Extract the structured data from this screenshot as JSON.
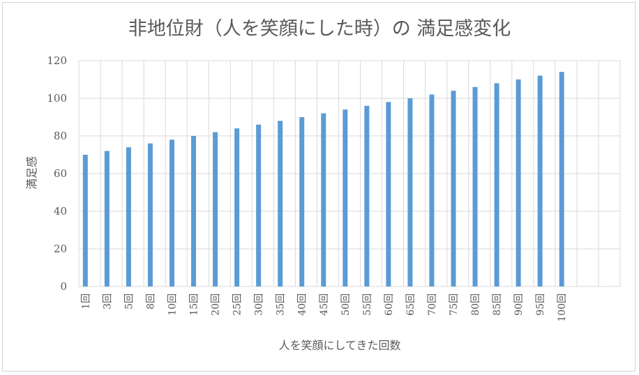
{
  "chart_data": {
    "type": "bar",
    "title": "非地位財（人を笑顔にした時）の 満足感変化",
    "xlabel": "人を笑顔にしてきた回数",
    "ylabel": "満足感",
    "ylim": [
      0,
      120
    ],
    "yticks": [
      0,
      20,
      40,
      60,
      80,
      100,
      120
    ],
    "grid": "both",
    "legend": "none",
    "bar_color": "#5b9bd5",
    "categories": [
      "1回",
      "3回",
      "5回",
      "8回",
      "10回",
      "15回",
      "20回",
      "25回",
      "30回",
      "35回",
      "40回",
      "45回",
      "50回",
      "55回",
      "60回",
      "65回",
      "70回",
      "75回",
      "80回",
      "85回",
      "90回",
      "95回",
      "100回",
      "",
      ""
    ],
    "values": [
      70,
      72,
      74,
      76,
      78,
      80,
      82,
      84,
      86,
      88,
      90,
      92,
      94,
      96,
      98,
      100,
      102,
      104,
      106,
      108,
      110,
      112,
      114,
      null,
      null
    ]
  }
}
